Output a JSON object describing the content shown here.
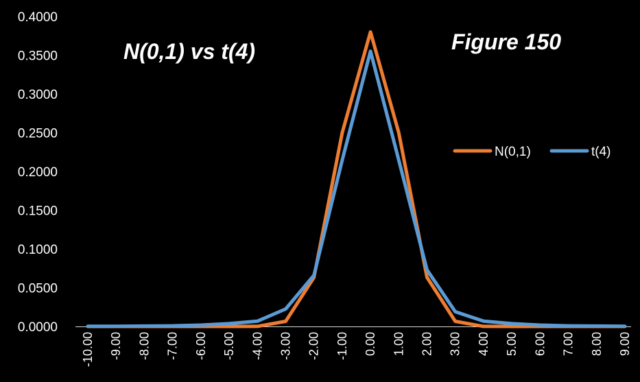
{
  "chart_data": {
    "type": "line",
    "title": "N(0,1) vs t(4)",
    "annotation": "Figure 150",
    "x": [
      "-10.00",
      "-9.00",
      "-8.00",
      "-7.00",
      "-6.00",
      "-5.00",
      "-4.00",
      "-3.00",
      "-2.00",
      "-1.00",
      "0.00",
      "1.00",
      "2.00",
      "3.00",
      "4.00",
      "5.00",
      "6.00",
      "7.00",
      "8.00",
      "9.00"
    ],
    "series": [
      {
        "name": "N(0,1)",
        "color": "#ED7D31",
        "values": [
          0.0,
          0.0,
          0.0,
          0.0,
          0.0,
          0.0,
          0.0001,
          0.0066,
          0.0633,
          0.25,
          0.38,
          0.25,
          0.0633,
          0.0066,
          0.0001,
          0.0,
          0.0,
          0.0,
          0.0,
          0.0
        ]
      },
      {
        "name": "t(4)",
        "color": "#5B9BD5",
        "values": [
          0.0002,
          0.0003,
          0.0005,
          0.0008,
          0.0018,
          0.0036,
          0.0068,
          0.0226,
          0.0661,
          0.2147,
          0.3551,
          0.2147,
          0.073,
          0.019,
          0.0068,
          0.0036,
          0.0018,
          0.0008,
          0.0005,
          0.0003
        ]
      }
    ],
    "yticks": [
      "0.0000",
      "0.0500",
      "0.1000",
      "0.1500",
      "0.2000",
      "0.2500",
      "0.3000",
      "0.3500",
      "0.4000"
    ],
    "ylim": [
      0,
      0.4
    ],
    "grid": false,
    "legend_position": "right",
    "background": "#000000",
    "text_color": "#FFFFFF",
    "axis_color": "#D9D9D9"
  }
}
